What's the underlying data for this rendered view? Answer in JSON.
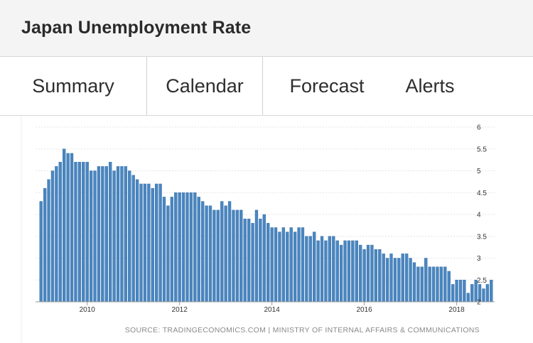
{
  "header": {
    "title": "Japan Unemployment Rate"
  },
  "tabs": [
    {
      "label": "Summary"
    },
    {
      "label": "Calendar"
    },
    {
      "label": "Forecast"
    },
    {
      "label": "Alerts"
    }
  ],
  "source": "SOURCE: TRADINGECONOMICS.COM | MINISTRY OF INTERNAL AFFAIRS & COMMUNICATIONS",
  "colors": {
    "bar": "#4a86c0",
    "bar_edge": "#2f6aa3",
    "grid": "#e6e6e6"
  },
  "chart_data": {
    "type": "bar",
    "title": "",
    "xlabel": "",
    "ylabel": "",
    "ylim": [
      2,
      6
    ],
    "yticks": [
      "2",
      "2.5",
      "3",
      "3.5",
      "4",
      "4.5",
      "5",
      "5.5",
      "6"
    ],
    "xticks": [
      "2010",
      "2012",
      "2014",
      "2016",
      "2018"
    ],
    "start": "2009-01",
    "x_tick_months": [
      "2010-01",
      "2012-01",
      "2014-01",
      "2016-01",
      "2018-01"
    ],
    "grid": true,
    "y_axis_side": "right",
    "values": [
      4.3,
      4.6,
      4.8,
      5.0,
      5.1,
      5.2,
      5.5,
      5.4,
      5.4,
      5.2,
      5.2,
      5.2,
      5.2,
      5.0,
      5.0,
      5.1,
      5.1,
      5.1,
      5.2,
      5.0,
      5.1,
      5.1,
      5.1,
      5.0,
      4.9,
      4.8,
      4.7,
      4.7,
      4.7,
      4.6,
      4.7,
      4.7,
      4.4,
      4.2,
      4.4,
      4.5,
      4.5,
      4.5,
      4.5,
      4.5,
      4.5,
      4.4,
      4.3,
      4.2,
      4.2,
      4.1,
      4.1,
      4.3,
      4.2,
      4.3,
      4.1,
      4.1,
      4.1,
      3.9,
      3.9,
      3.8,
      4.1,
      3.9,
      4.0,
      3.8,
      3.7,
      3.7,
      3.6,
      3.7,
      3.6,
      3.7,
      3.6,
      3.7,
      3.7,
      3.5,
      3.5,
      3.6,
      3.4,
      3.5,
      3.4,
      3.5,
      3.5,
      3.4,
      3.3,
      3.4,
      3.4,
      3.4,
      3.4,
      3.3,
      3.2,
      3.3,
      3.3,
      3.2,
      3.2,
      3.1,
      3.0,
      3.1,
      3.0,
      3.0,
      3.1,
      3.1,
      3.0,
      2.9,
      2.8,
      2.8,
      3.0,
      2.8,
      2.8,
      2.8,
      2.8,
      2.8,
      2.7,
      2.4,
      2.5,
      2.5,
      2.5,
      2.2,
      2.4,
      2.5,
      2.4,
      2.3,
      2.4,
      2.5
    ]
  }
}
